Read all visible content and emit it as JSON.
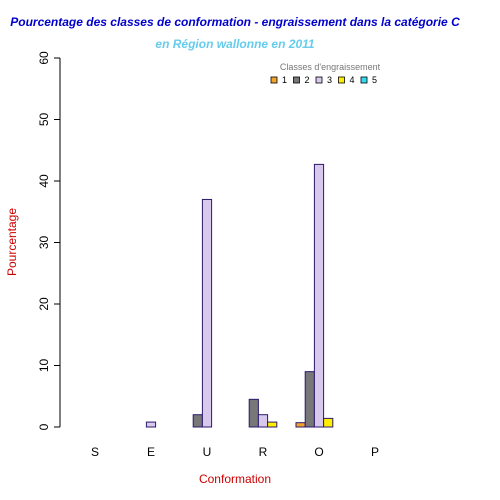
{
  "colors": {
    "title": "#0000cc",
    "subtitle": "#66ccee",
    "axis_label": "#cc0000",
    "legend_title": "#777777",
    "bar_stroke": "#2a1a6e"
  },
  "chart_data": {
    "type": "bar",
    "title": "Pourcentage des classes de conformation - engraissement dans la catégorie C",
    "subtitle": "en Région wallonne en 2011",
    "xlabel": "Conformation",
    "ylabel": "Pourcentage",
    "ylim": [
      0,
      60
    ],
    "yticks": [
      "0",
      "10",
      "20",
      "30",
      "40",
      "50",
      "60"
    ],
    "categories": [
      "S",
      "E",
      "U",
      "R",
      "O",
      "P"
    ],
    "legend_title": "Classes d'engraissement",
    "legend_position": "top-right",
    "grid": false,
    "series": [
      {
        "name": "1",
        "color": "#f5a22a",
        "values": [
          0,
          0,
          0,
          0,
          0.7,
          0
        ]
      },
      {
        "name": "2",
        "color": "#777777",
        "values": [
          0,
          0,
          2.0,
          4.5,
          9.0,
          0
        ]
      },
      {
        "name": "3",
        "color": "#d8c8ec",
        "values": [
          0,
          0.8,
          37.0,
          2.0,
          42.7,
          0
        ]
      },
      {
        "name": "4",
        "color": "#ffee00",
        "values": [
          0,
          0,
          0,
          0.8,
          1.4,
          0
        ]
      },
      {
        "name": "5",
        "color": "#33ddee",
        "values": [
          0,
          0,
          0,
          0,
          0,
          0
        ]
      }
    ]
  }
}
